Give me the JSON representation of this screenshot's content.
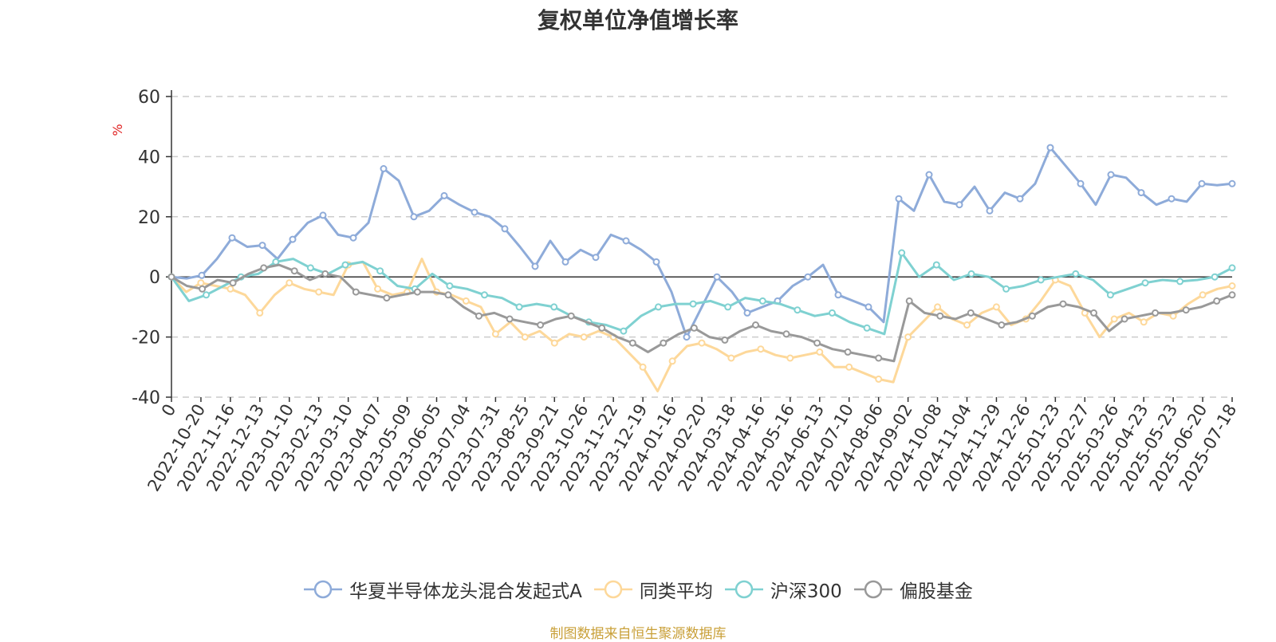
{
  "colors": {
    "axis": "#333333",
    "grid": "#cccccc",
    "unit": "#e02020"
  },
  "chart_data": {
    "type": "line",
    "title": "复权单位净值增长率",
    "ylabel": "%",
    "ylim": [
      -40,
      60
    ],
    "yticks": [
      -40,
      -20,
      0,
      20,
      40,
      60
    ],
    "x_tick_labels": [
      "0",
      "2022-10-20",
      "2022-11-16",
      "2022-12-13",
      "2023-01-10",
      "2023-02-13",
      "2023-03-10",
      "2023-04-07",
      "2023-05-09",
      "2023-06-05",
      "2023-07-04",
      "2023-07-31",
      "2023-08-25",
      "2023-09-21",
      "2023-10-26",
      "2023-11-22",
      "2023-12-19",
      "2024-01-16",
      "2024-02-20",
      "2024-03-18",
      "2024-04-16",
      "2024-05-16",
      "2024-06-13",
      "2024-07-10",
      "2024-08-06",
      "2024-09-02",
      "2024-10-08",
      "2024-11-04",
      "2024-11-29",
      "2024-12-26",
      "2025-01-23",
      "2025-02-27",
      "2025-03-26",
      "2025-04-23",
      "2025-05-23",
      "2025-06-20",
      "2025-07-18"
    ],
    "grid": true,
    "legend_position": "bottom",
    "series": [
      {
        "name": "华夏半导体龙头混合发起式A",
        "color": "#8eabd9",
        "values": [
          0,
          -0.5,
          0.5,
          6,
          13,
          10,
          10.5,
          6,
          12.5,
          18,
          20.5,
          14,
          13,
          18,
          36,
          32,
          20,
          22,
          27,
          24,
          21.5,
          20,
          16,
          10,
          3.5,
          12,
          5,
          9,
          6.5,
          14,
          12,
          9,
          5,
          -5,
          -20,
          -10,
          0,
          -5,
          -12,
          -10,
          -8,
          -3,
          0,
          4,
          -6,
          -8,
          -10,
          -15,
          26,
          22,
          34,
          25,
          24,
          30,
          22,
          28,
          26,
          31,
          43,
          37,
          31,
          24,
          34,
          33,
          28,
          24,
          26,
          25,
          31,
          30.5,
          31
        ]
      },
      {
        "name": "同类平均",
        "color": "#fdd89a",
        "values": [
          0,
          -5,
          -2,
          -3,
          -4,
          -6,
          -12,
          -6,
          -2,
          -4,
          -5,
          -6,
          4,
          5,
          -4,
          -6,
          -5,
          6,
          -5,
          -6,
          -8,
          -10,
          -19,
          -15,
          -20,
          -18,
          -22,
          -19,
          -20,
          -18,
          -20,
          -25,
          -30,
          -38,
          -28,
          -23,
          -22,
          -24,
          -27,
          -25,
          -24,
          -26,
          -27,
          -26,
          -25,
          -30,
          -30,
          -32,
          -34,
          -35,
          -20,
          -15,
          -10,
          -14,
          -16,
          -12,
          -10,
          -16,
          -14,
          -8,
          -1,
          -3,
          -12,
          -20,
          -14,
          -12,
          -15,
          -12,
          -13,
          -9,
          -6,
          -4,
          -3
        ]
      },
      {
        "name": "沪深300",
        "color": "#7fd1d1",
        "values": [
          0,
          -8,
          -6,
          -3,
          0,
          1,
          5,
          6,
          3,
          1,
          4,
          5,
          2,
          -3,
          -4,
          1,
          -3,
          -4,
          -6,
          -7,
          -10,
          -9,
          -10,
          -13,
          -15,
          -16,
          -18,
          -13,
          -10,
          -9,
          -9,
          -8,
          -10,
          -7,
          -8,
          -9,
          -11,
          -13,
          -12,
          -15,
          -17,
          -19,
          8,
          0,
          4,
          -1,
          1,
          0,
          -4,
          -3,
          -1,
          0,
          1,
          -1,
          -6,
          -4,
          -2,
          -1,
          -1.5,
          -1,
          0,
          3
        ]
      },
      {
        "name": "偏股基金",
        "color": "#999999",
        "values": [
          0,
          -3,
          -4,
          -1,
          -2,
          1,
          3,
          4,
          2,
          -1,
          1,
          0,
          -5,
          -6,
          -7,
          -6,
          -5,
          -5,
          -6,
          -10,
          -13,
          -12,
          -14,
          -15,
          -16,
          -14,
          -13,
          -15,
          -17,
          -20,
          -22,
          -25,
          -22,
          -19,
          -17,
          -20,
          -21,
          -18,
          -16,
          -18,
          -19,
          -20,
          -22,
          -24,
          -25,
          -26,
          -27,
          -28,
          -8,
          -12,
          -13,
          -14,
          -12,
          -14,
          -16,
          -15,
          -13,
          -10,
          -9,
          -10,
          -12,
          -18,
          -14,
          -13,
          -12,
          -12,
          -11,
          -10,
          -8,
          -6
        ]
      }
    ]
  },
  "source": "制图数据来自恒生聚源数据库"
}
